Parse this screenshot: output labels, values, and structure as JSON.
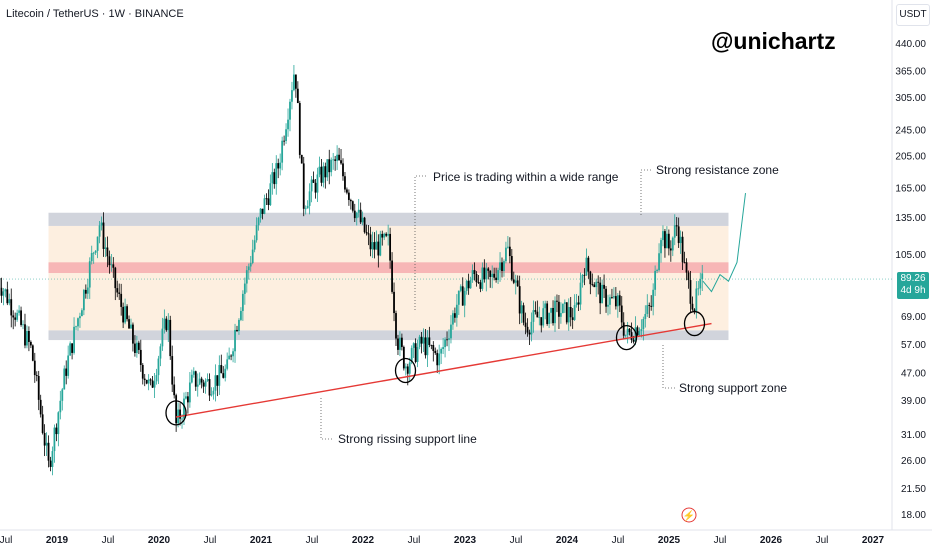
{
  "header": {
    "symbol_text": "Litecoin / TetherUS · 1W · BINANCE"
  },
  "watermark": "@unichartz",
  "currency_label": "USDT",
  "last_price": {
    "value": "89.26",
    "countdown": "4d 9h"
  },
  "annotations": {
    "range": "Price is trading within a wide range",
    "resistance": "Strong resistance zone",
    "support_zone": "Strong support zone",
    "support_line": "Strong rissing support line"
  },
  "colors": {
    "up": "#26a69a",
    "down": "#000000",
    "support_line": "#e53935",
    "zone_gray": "#d1d4dc",
    "zone_red": "#f7b6b6",
    "range_fill": "#fdefe0",
    "last_price_line": "#26a69a"
  },
  "chart_data": {
    "type": "candlestick",
    "title": "Litecoin / TetherUS · 1W · BINANCE",
    "yscale": "log",
    "ylim": [
      16.5,
      520
    ],
    "y_ticks": [
      "440.00",
      "365.00",
      "305.00",
      "245.00",
      "205.00",
      "165.00",
      "135.00",
      "105.00",
      "69.00",
      "57.00",
      "47.00",
      "39.00",
      "31.00",
      "26.00",
      "21.50",
      "18.00"
    ],
    "x_ticks": [
      {
        "label": "Jul",
        "bold": false
      },
      {
        "label": "2019",
        "bold": true
      },
      {
        "label": "Jul",
        "bold": false
      },
      {
        "label": "2020",
        "bold": true
      },
      {
        "label": "Jul",
        "bold": false
      },
      {
        "label": "2021",
        "bold": true
      },
      {
        "label": "Jul",
        "bold": false
      },
      {
        "label": "2022",
        "bold": true
      },
      {
        "label": "Jul",
        "bold": false
      },
      {
        "label": "2023",
        "bold": true
      },
      {
        "label": "Jul",
        "bold": false
      },
      {
        "label": "2024",
        "bold": true
      },
      {
        "label": "Jul",
        "bold": false
      },
      {
        "label": "2025",
        "bold": true
      },
      {
        "label": "Jul",
        "bold": false
      },
      {
        "label": "2026",
        "bold": true
      },
      {
        "label": "Jul",
        "bold": false
      },
      {
        "label": "2027",
        "bold": true
      }
    ],
    "x_dates": [
      "2018-07",
      "2019-01",
      "2019-07",
      "2020-01",
      "2020-07",
      "2021-01",
      "2021-07",
      "2022-01",
      "2022-07",
      "2023-01",
      "2023-07",
      "2024-01",
      "2024-07",
      "2025-01",
      "2025-07",
      "2026-01",
      "2026-07",
      "2027-01"
    ],
    "price_path": [
      [
        "2018-06",
        90
      ],
      [
        "2018-08",
        72
      ],
      [
        "2018-10",
        55
      ],
      [
        "2018-12",
        25
      ],
      [
        "2019-02",
        48
      ],
      [
        "2019-04",
        78
      ],
      [
        "2019-06",
        130
      ],
      [
        "2019-08",
        82
      ],
      [
        "2019-10",
        58
      ],
      [
        "2019-12",
        42
      ],
      [
        "2020-02",
        70
      ],
      [
        "2020-03",
        33
      ],
      [
        "2020-05",
        45
      ],
      [
        "2020-07",
        44
      ],
      [
        "2020-09",
        48
      ],
      [
        "2020-11",
        85
      ],
      [
        "2021-01",
        140
      ],
      [
        "2021-03",
        190
      ],
      [
        "2021-05",
        380
      ],
      [
        "2021-06",
        150
      ],
      [
        "2021-08",
        180
      ],
      [
        "2021-10",
        200
      ],
      [
        "2021-12",
        145
      ],
      [
        "2022-02",
        110
      ],
      [
        "2022-04",
        115
      ],
      [
        "2022-05",
        60
      ],
      [
        "2022-06",
        50
      ],
      [
        "2022-08",
        58
      ],
      [
        "2022-10",
        52
      ],
      [
        "2022-12",
        75
      ],
      [
        "2023-02",
        92
      ],
      [
        "2023-04",
        88
      ],
      [
        "2023-06",
        110
      ],
      [
        "2023-08",
        65
      ],
      [
        "2023-10",
        70
      ],
      [
        "2023-12",
        72
      ],
      [
        "2024-02",
        70
      ],
      [
        "2024-03",
        100
      ],
      [
        "2024-05",
        80
      ],
      [
        "2024-07",
        75
      ],
      [
        "2024-08",
        60
      ],
      [
        "2024-10",
        68
      ],
      [
        "2024-11",
        75
      ],
      [
        "2024-12",
        125
      ],
      [
        "2025-01",
        110
      ],
      [
        "2025-02",
        130
      ],
      [
        "2025-03",
        90
      ],
      [
        "2025-04",
        75
      ],
      [
        "2025-05",
        88
      ],
      [
        "2025-05",
        89.26
      ]
    ],
    "zones": {
      "resistance_zone": [
        128,
        140
      ],
      "mid_red_band": [
        93,
        100
      ],
      "support_zone": [
        59,
        63
      ],
      "range_fill": [
        63,
        128
      ]
    },
    "support_line": {
      "from": [
        "2020-03",
        35
      ],
      "to": [
        "2025-06",
        66
      ]
    },
    "touch_points": [
      [
        "2020-03",
        36
      ],
      [
        "2022-06",
        48
      ],
      [
        "2024-08",
        60
      ],
      [
        "2025-04",
        66
      ]
    ],
    "projection": [
      [
        "2025-05",
        88
      ],
      [
        "2025-06",
        82
      ],
      [
        "2025-07",
        92
      ],
      [
        "2025-08",
        88
      ],
      [
        "2025-09",
        100
      ],
      [
        "2025-10",
        160
      ]
    ],
    "last_price": 89.26
  }
}
